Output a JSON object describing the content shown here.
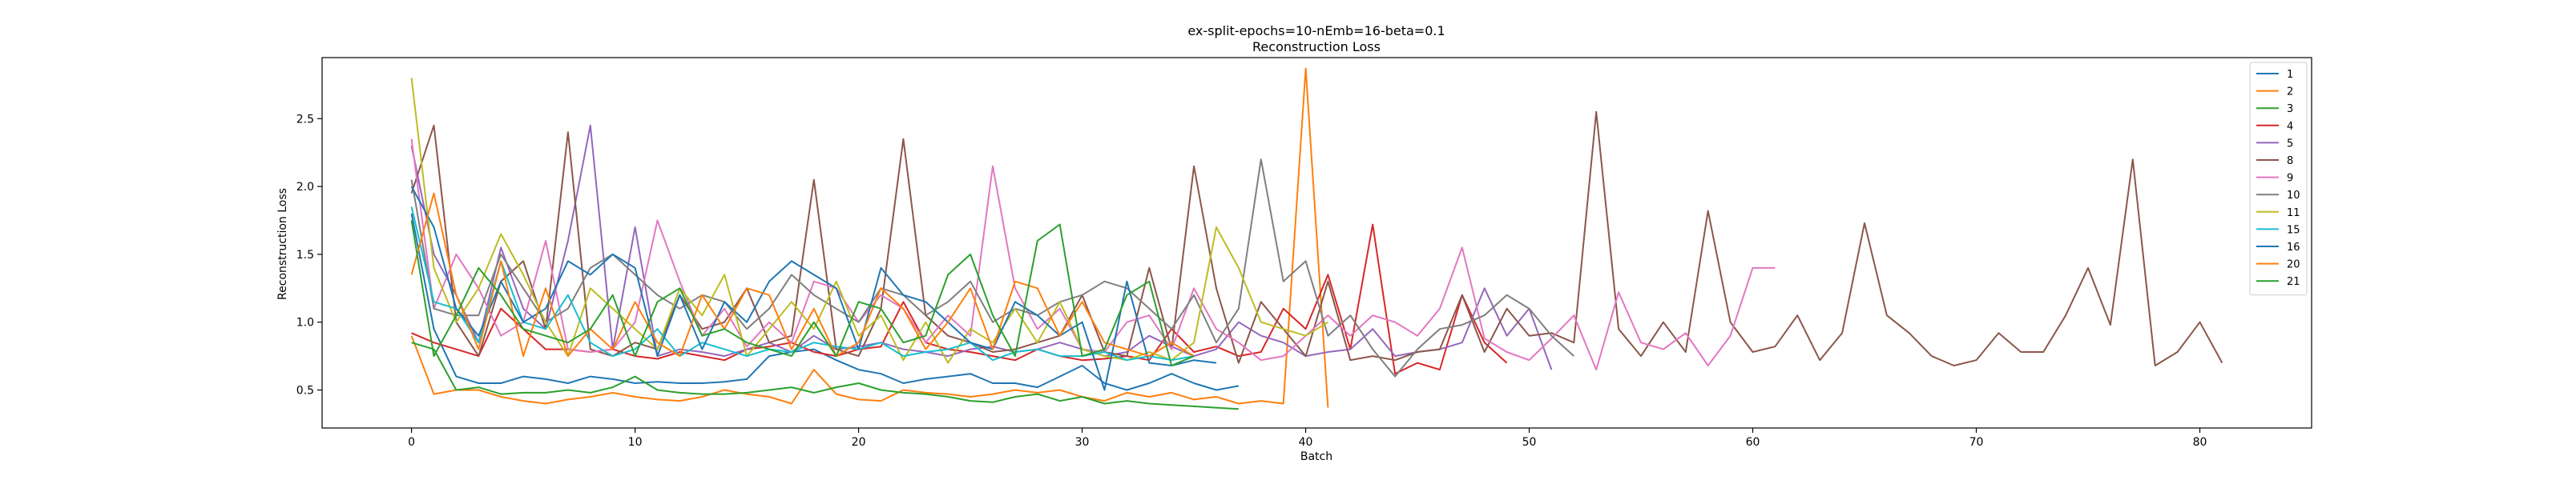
{
  "chart_data": {
    "type": "line",
    "title": "ex-split-epochs=10-nEmb=16-beta=0.1",
    "subtitle": "Reconstruction Loss",
    "xlabel": "Batch",
    "ylabel": "Reconstruction Loss",
    "xlim": [
      -4,
      85
    ],
    "ylim": [
      0.22,
      2.95
    ],
    "xticks": [
      0,
      10,
      20,
      30,
      40,
      50,
      60,
      70,
      80
    ],
    "yticks": [
      0.5,
      1.0,
      1.5,
      2.0,
      2.5
    ],
    "xtick_labels": [
      "0",
      "10",
      "20",
      "30",
      "40",
      "50",
      "60",
      "70",
      "80"
    ],
    "ytick_labels": [
      "0.5",
      "1.0",
      "1.5",
      "2.0",
      "2.5"
    ],
    "grid": false,
    "legend_position": "top-right",
    "series": [
      {
        "name": "1",
        "color": "#1f77b4",
        "values": [
          1.8,
          0.95,
          0.6,
          0.55,
          0.55,
          0.6,
          0.58,
          0.55,
          0.6,
          0.58,
          0.55,
          0.56,
          0.55,
          0.55,
          0.56,
          0.58,
          0.75,
          0.78,
          0.8,
          0.72,
          0.65,
          0.62,
          0.55,
          0.58,
          0.6,
          0.62,
          0.55,
          0.55,
          0.52,
          0.6,
          0.68,
          0.55,
          0.5,
          0.55,
          0.62,
          0.55,
          0.5,
          0.53
        ]
      },
      {
        "name": "2",
        "color": "#ff7f0e",
        "values": [
          0.9,
          0.47,
          0.5,
          0.5,
          0.45,
          0.42,
          0.4,
          0.43,
          0.45,
          0.48,
          0.45,
          0.43,
          0.42,
          0.45,
          0.5,
          0.47,
          0.45,
          0.4,
          0.65,
          0.47,
          0.43,
          0.42,
          0.5,
          0.48,
          0.47,
          0.45,
          0.47,
          0.5,
          0.48,
          0.5,
          0.45,
          0.42,
          0.48,
          0.45,
          0.48,
          0.43,
          0.45,
          0.4,
          0.42,
          0.4,
          2.87,
          0.37
        ]
      },
      {
        "name": "3",
        "color": "#2ca02c",
        "values": [
          0.85,
          0.8,
          0.5,
          0.52,
          0.47,
          0.48,
          0.48,
          0.5,
          0.48,
          0.52,
          0.6,
          0.5,
          0.48,
          0.47,
          0.47,
          0.48,
          0.5,
          0.52,
          0.48,
          0.52,
          0.55,
          0.5,
          0.48,
          0.47,
          0.45,
          0.42,
          0.41,
          0.45,
          0.47,
          0.42,
          0.45,
          0.4,
          0.42,
          0.4,
          0.39,
          0.38,
          0.37,
          0.36
        ]
      },
      {
        "name": "4",
        "color": "#d62728",
        "values": [
          0.92,
          0.85,
          0.8,
          0.75,
          1.1,
          0.95,
          0.8,
          0.8,
          0.78,
          0.8,
          0.75,
          0.73,
          0.78,
          0.75,
          0.72,
          0.8,
          0.82,
          0.85,
          0.78,
          0.75,
          0.8,
          0.82,
          1.15,
          0.85,
          0.8,
          0.78,
          0.75,
          0.72,
          0.8,
          0.75,
          0.72,
          0.73,
          0.75,
          0.72,
          0.95,
          0.78,
          0.82,
          0.75,
          0.78,
          1.1,
          0.95,
          1.35,
          0.8,
          1.72,
          0.62,
          0.7,
          0.65,
          1.2,
          0.85,
          0.7
        ]
      },
      {
        "name": "5",
        "color": "#9467bd",
        "values": [
          2.3,
          1.5,
          1.2,
          0.85,
          1.55,
          1.1,
          0.95,
          1.6,
          2.45,
          0.8,
          1.7,
          0.75,
          0.8,
          0.78,
          0.75,
          0.8,
          0.85,
          0.78,
          0.9,
          0.8,
          0.82,
          0.85,
          0.8,
          0.78,
          0.75,
          0.8,
          0.82,
          0.78,
          0.8,
          0.85,
          0.8,
          0.75,
          0.78,
          0.9,
          0.82,
          0.75,
          0.8,
          1.0,
          0.9,
          0.85,
          0.75,
          0.78,
          0.8,
          0.95,
          0.75,
          0.78,
          0.8,
          0.85,
          1.25,
          0.9,
          1.1,
          0.65
        ]
      },
      {
        "name": "8",
        "color": "#8c564b",
        "values": [
          1.95,
          2.45,
          1.0,
          0.75,
          1.3,
          1.45,
          0.95,
          2.4,
          0.8,
          0.75,
          0.85,
          0.8,
          1.2,
          0.95,
          1.0,
          1.25,
          0.85,
          0.9,
          2.05,
          0.8,
          0.75,
          1.1,
          2.35,
          1.05,
          0.9,
          0.85,
          0.78,
          0.8,
          0.85,
          0.9,
          1.2,
          0.78,
          0.75,
          1.4,
          0.8,
          2.15,
          1.25,
          0.7,
          1.15,
          0.95,
          0.75,
          1.3,
          0.72,
          0.75,
          0.72,
          0.78,
          0.8,
          1.2,
          0.78,
          1.1,
          0.9,
          0.92,
          0.85,
          2.55,
          0.95,
          0.75,
          1.0,
          0.78,
          1.82,
          1.0,
          0.78,
          0.82,
          1.05,
          0.72,
          0.92,
          1.73,
          1.05,
          0.92,
          0.75,
          0.68,
          0.72,
          0.92,
          0.78,
          0.78,
          1.05,
          1.4,
          0.98,
          2.2,
          0.68,
          0.78,
          1.0,
          0.7
        ]
      },
      {
        "name": "9",
        "color": "#e377c2",
        "values": [
          2.35,
          1.1,
          1.5,
          1.25,
          0.9,
          1.0,
          1.6,
          0.8,
          0.78,
          0.8,
          1.0,
          1.75,
          1.3,
          0.9,
          1.1,
          0.82,
          1.0,
          0.85,
          1.3,
          1.25,
          1.0,
          1.2,
          1.1,
          0.85,
          1.05,
          0.9,
          2.15,
          1.25,
          0.95,
          1.1,
          0.8,
          0.78,
          1.0,
          1.05,
          0.8,
          1.25,
          0.95,
          0.85,
          0.72,
          0.75,
          0.9,
          1.05,
          0.9,
          1.05,
          1.0,
          0.9,
          1.1,
          1.55,
          0.88,
          0.78,
          0.72,
          0.88,
          1.05,
          0.65,
          1.22,
          0.85,
          0.8,
          0.92,
          0.68,
          0.9,
          1.4,
          1.4
        ]
      },
      {
        "name": "10",
        "color": "#7f7f7f",
        "values": [
          2.05,
          1.1,
          1.05,
          1.05,
          1.5,
          1.25,
          1.0,
          1.1,
          1.4,
          1.5,
          1.35,
          1.2,
          1.1,
          1.2,
          1.15,
          0.95,
          1.1,
          1.35,
          1.2,
          1.1,
          1.0,
          1.25,
          1.2,
          1.05,
          1.15,
          1.3,
          1.0,
          1.1,
          1.05,
          1.15,
          1.2,
          1.3,
          1.25,
          1.1,
          0.95,
          1.2,
          0.85,
          1.1,
          2.2,
          1.3,
          1.45,
          0.9,
          1.05,
          0.8,
          0.6,
          0.8,
          0.95,
          0.98,
          1.05,
          1.2,
          1.1,
          0.9,
          0.75
        ]
      },
      {
        "name": "11",
        "color": "#bcbd22",
        "values": [
          2.8,
          1.4,
          1.0,
          1.25,
          1.65,
          1.35,
          1.0,
          0.75,
          1.25,
          1.1,
          0.95,
          0.8,
          1.25,
          1.05,
          1.35,
          0.75,
          0.95,
          1.15,
          0.95,
          1.3,
          0.9,
          1.05,
          0.72,
          1.0,
          0.7,
          0.95,
          0.85,
          1.1,
          0.85,
          1.15,
          0.8,
          0.75,
          0.72,
          0.78,
          0.72,
          0.85,
          1.7,
          1.4,
          1.0,
          0.95,
          0.9,
          1.0
        ]
      },
      {
        "name": "15",
        "color": "#17becf",
        "values": [
          1.85,
          1.15,
          1.1,
          0.85,
          1.45,
          1.0,
          0.95,
          1.2,
          0.85,
          0.75,
          0.8,
          0.95,
          0.75,
          0.85,
          0.8,
          0.75,
          0.8,
          0.78,
          0.85,
          0.82,
          0.8,
          0.85,
          0.75,
          0.78,
          0.8,
          0.85,
          0.72,
          0.78,
          0.8,
          0.75,
          0.75,
          0.78,
          0.72,
          0.75,
          0.72,
          0.75
        ]
      },
      {
        "name": "16",
        "color": "#1f77b4",
        "values": [
          2.0,
          1.7,
          1.1,
          0.9,
          1.3,
          1.0,
          1.1,
          1.45,
          1.35,
          1.5,
          1.4,
          0.75,
          1.2,
          0.8,
          1.15,
          1.0,
          1.3,
          1.45,
          1.35,
          1.25,
          0.8,
          1.4,
          1.2,
          1.15,
          1.0,
          0.85,
          0.8,
          1.15,
          1.05,
          0.9,
          1.0,
          0.5,
          1.3,
          0.7,
          0.68,
          0.72,
          0.7
        ]
      },
      {
        "name": "20",
        "color": "#ff7f0e",
        "values": [
          1.35,
          1.95,
          1.2,
          0.8,
          1.45,
          0.75,
          1.25,
          0.75,
          0.95,
          0.8,
          1.15,
          0.85,
          0.75,
          1.2,
          0.95,
          1.25,
          1.2,
          0.8,
          1.1,
          0.75,
          0.85,
          1.25,
          1.1,
          0.8,
          1.0,
          1.25,
          0.8,
          1.3,
          1.25,
          0.9,
          1.15,
          0.85,
          0.8,
          0.75,
          0.85,
          0.75
        ]
      },
      {
        "name": "21",
        "color": "#2ca02c",
        "values": [
          1.75,
          0.75,
          1.05,
          1.4,
          1.2,
          0.95,
          0.9,
          0.85,
          0.95,
          1.2,
          0.75,
          1.15,
          1.25,
          0.9,
          0.95,
          0.85,
          0.8,
          0.75,
          1.0,
          0.75,
          1.15,
          1.1,
          0.85,
          0.9,
          1.35,
          1.5,
          1.05,
          0.75,
          1.6,
          1.72,
          0.75,
          0.8,
          1.2,
          1.3,
          0.68,
          0.75
        ]
      }
    ]
  }
}
